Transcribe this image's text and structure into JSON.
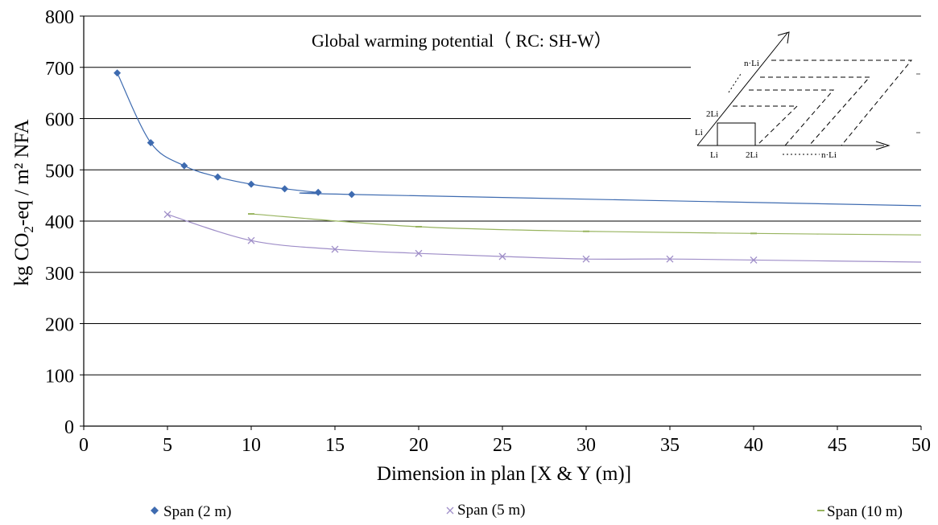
{
  "chart_data": {
    "type": "scatter",
    "title": "Global warming potential（ RC: SH-W）",
    "xlabel": "Dimension in plan [X & Y (m)]",
    "ylabel_parts": [
      "kg CO",
      "2",
      "-eq / m² NFA"
    ],
    "xlim": [
      0,
      50
    ],
    "ylim": [
      0,
      800
    ],
    "x_ticks": [
      "0",
      "5",
      "10",
      "15",
      "20",
      "25",
      "30",
      "35",
      "40",
      "45",
      "50"
    ],
    "y_ticks": [
      "0",
      "100",
      "200",
      "300",
      "400",
      "500",
      "600",
      "700",
      "800"
    ],
    "grid": "horizontal",
    "legend_position": "bottom",
    "series": [
      {
        "name": "Span (2 m)",
        "marker": "diamond",
        "color": "#3E6BB0",
        "x": [
          2,
          4,
          6,
          8,
          10,
          12,
          14,
          16
        ],
        "y": [
          689,
          553,
          508,
          486,
          472,
          463,
          456,
          452
        ],
        "trend_end": [
          50,
          430
        ]
      },
      {
        "name": "Span (5 m)",
        "marker": "x",
        "color": "#9F8EC8",
        "x": [
          5,
          10,
          15,
          20,
          25,
          30,
          35,
          40
        ],
        "y": [
          413,
          362,
          345,
          337,
          331,
          326,
          326,
          324
        ],
        "trend_end": [
          50,
          320
        ]
      },
      {
        "name": "Span (10 m)",
        "marker": "dash",
        "color": "#98B45F",
        "x": [
          10,
          20,
          30,
          40
        ],
        "y": [
          414,
          389,
          380,
          376
        ],
        "trend_end": [
          50,
          373
        ]
      }
    ],
    "inset_labels": {
      "nLi_top": "n·Li",
      "twoLi_left": "2Li",
      "Li_left": "Li",
      "Li_bottom": "Li",
      "twoLi_bottom": "2Li",
      "nLi_bottom": "n·Li"
    }
  }
}
